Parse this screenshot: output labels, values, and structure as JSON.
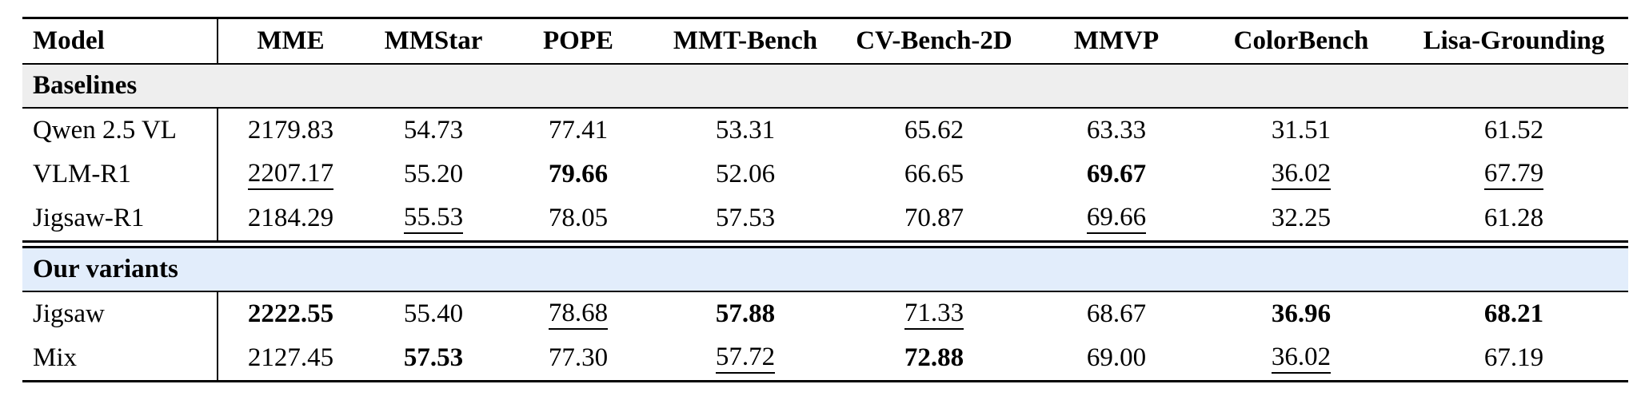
{
  "page": {
    "background": "#ffffff",
    "rule_color": "#000000",
    "text_color": "#000000"
  },
  "table": {
    "columns": [
      {
        "id": "model",
        "label": "Model"
      },
      {
        "id": "mme",
        "label": "MME"
      },
      {
        "id": "mmstar",
        "label": "MMStar"
      },
      {
        "id": "pope",
        "label": "POPE"
      },
      {
        "id": "mmt-bench",
        "label": "MMT-Bench"
      },
      {
        "id": "cv-bench-2d",
        "label": "CV-Bench-2D"
      },
      {
        "id": "mmvp",
        "label": "MMVP"
      },
      {
        "id": "colorbench",
        "label": "ColorBench"
      },
      {
        "id": "lisa-grounding",
        "label": "Lisa-Grounding"
      }
    ],
    "style_legend": {
      "b": "bold (best)",
      "u": "underlined (second best)",
      "": "plain"
    },
    "sections": [
      {
        "label": "Baselines",
        "band_color": "#eeeeee",
        "rows": [
          {
            "model": "Qwen 2.5 VL",
            "cells": [
              {
                "v": "2179.83",
                "s": ""
              },
              {
                "v": "54.73",
                "s": ""
              },
              {
                "v": "77.41",
                "s": ""
              },
              {
                "v": "53.31",
                "s": ""
              },
              {
                "v": "65.62",
                "s": ""
              },
              {
                "v": "63.33",
                "s": ""
              },
              {
                "v": "31.51",
                "s": ""
              },
              {
                "v": "61.52",
                "s": ""
              }
            ]
          },
          {
            "model": "VLM-R1",
            "cells": [
              {
                "v": "2207.17",
                "s": "u"
              },
              {
                "v": "55.20",
                "s": ""
              },
              {
                "v": "79.66",
                "s": "b"
              },
              {
                "v": "52.06",
                "s": ""
              },
              {
                "v": "66.65",
                "s": ""
              },
              {
                "v": "69.67",
                "s": "b"
              },
              {
                "v": "36.02",
                "s": "u"
              },
              {
                "v": "67.79",
                "s": "u"
              }
            ]
          },
          {
            "model": "Jigsaw-R1",
            "cells": [
              {
                "v": "2184.29",
                "s": ""
              },
              {
                "v": "55.53",
                "s": "u"
              },
              {
                "v": "78.05",
                "s": ""
              },
              {
                "v": "57.53",
                "s": ""
              },
              {
                "v": "70.87",
                "s": ""
              },
              {
                "v": "69.66",
                "s": "u"
              },
              {
                "v": "32.25",
                "s": ""
              },
              {
                "v": "61.28",
                "s": ""
              }
            ]
          }
        ]
      },
      {
        "label": "Our variants",
        "band_color": "#e2edfb",
        "rows": [
          {
            "model": "Jigsaw",
            "cells": [
              {
                "v": "2222.55",
                "s": "b"
              },
              {
                "v": "55.40",
                "s": ""
              },
              {
                "v": "78.68",
                "s": "u"
              },
              {
                "v": "57.88",
                "s": "b"
              },
              {
                "v": "71.33",
                "s": "u"
              },
              {
                "v": "68.67",
                "s": ""
              },
              {
                "v": "36.96",
                "s": "b"
              },
              {
                "v": "68.21",
                "s": "b"
              }
            ]
          },
          {
            "model": "Mix",
            "cells": [
              {
                "v": "2127.45",
                "s": ""
              },
              {
                "v": "57.53",
                "s": "b"
              },
              {
                "v": "77.30",
                "s": ""
              },
              {
                "v": "57.72",
                "s": "u"
              },
              {
                "v": "72.88",
                "s": "b"
              },
              {
                "v": "69.00",
                "s": ""
              },
              {
                "v": "36.02",
                "s": "u"
              },
              {
                "v": "67.19",
                "s": ""
              }
            ]
          }
        ]
      }
    ]
  }
}
